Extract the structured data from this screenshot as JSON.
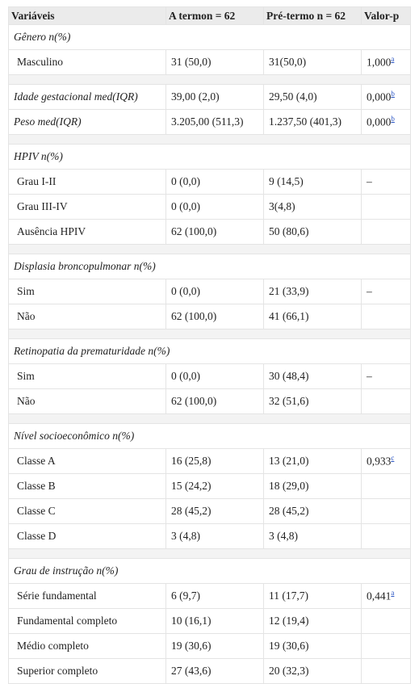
{
  "table": {
    "columns": [
      "Variáveis",
      "A termon = 62",
      "Pré-termo n = 62",
      "Valor-p"
    ],
    "groups": [
      {
        "title": "Gênero n(%)",
        "rows": [
          {
            "label": "Masculino",
            "a": "31 (50,0)",
            "b": "31(50,0)",
            "p": "1,000",
            "note": "a"
          }
        ]
      },
      {
        "rows": [
          {
            "label": "Idade gestacional med(IQR)",
            "a": "39,00 (2,0)",
            "b": "29,50 (4,0)",
            "p": "0,000",
            "note": "b"
          },
          {
            "label": "Peso med(IQR)",
            "a": "3.205,00 (511,3)",
            "b": "1.237,50 (401,3)",
            "p": "0,000",
            "note": "b"
          }
        ]
      },
      {
        "title": "HPIV n(%)",
        "rows": [
          {
            "label": "Grau I-II",
            "a": "0 (0,0)",
            "b": "9 (14,5)",
            "p": "–"
          },
          {
            "label": "Grau III-IV",
            "a": "0 (0,0)",
            "b": "3(4,8)"
          },
          {
            "label": "Ausência HPIV",
            "a": "62 (100,0)",
            "b": "50 (80,6)"
          }
        ]
      },
      {
        "title": "Displasia broncopulmonar n(%)",
        "rows": [
          {
            "label": "Sim",
            "a": "0 (0,0)",
            "b": "21 (33,9)",
            "p": "–"
          },
          {
            "label": "Não",
            "a": "62 (100,0)",
            "b": "41 (66,1)"
          }
        ]
      },
      {
        "title": "Retinopatia da prematuridade n(%)",
        "rows": [
          {
            "label": "Sim",
            "a": "0 (0,0)",
            "b": "30 (48,4)",
            "p": "–"
          },
          {
            "label": "Não",
            "a": "62 (100,0)",
            "b": "32 (51,6)"
          }
        ]
      },
      {
        "title": "Nível socioeconômico n(%)",
        "rows": [
          {
            "label": "Classe A",
            "a": "16 (25,8)",
            "b": "13 (21,0)",
            "p": "0,933",
            "note": "c"
          },
          {
            "label": "Classe B",
            "a": "15 (24,2)",
            "b": "18 (29,0)"
          },
          {
            "label": "Classe C",
            "a": "28 (45,2)",
            "b": "28 (45,2)"
          },
          {
            "label": "Classe D",
            "a": "3 (4,8)",
            "b": "3 (4,8)"
          }
        ]
      },
      {
        "title": "Grau de instrução n(%)",
        "rows": [
          {
            "label": "Série fundamental",
            "a": "6 (9,7)",
            "b": "11 (17,7)",
            "p": "0,441",
            "note": "a"
          },
          {
            "label": "Fundamental completo",
            "a": "10 (16,1)",
            "b": "12 (19,4)"
          },
          {
            "label": "Médio completo",
            "a": "19 (30,6)",
            "b": "19 (30,6)"
          },
          {
            "label": "Superior completo",
            "a": "27 (43,6)",
            "b": "20 (32,3)"
          }
        ]
      }
    ]
  }
}
